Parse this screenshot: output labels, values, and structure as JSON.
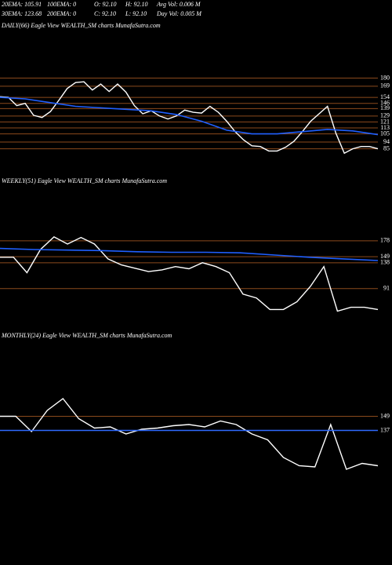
{
  "header": [
    [
      "20EMA: 105.91",
      "100EMA: 0",
      "O: 92.10",
      "H: 92.10",
      "Avg Vol: 0.006 M"
    ],
    [
      "30EMA: 123.68",
      "200EMA: 0",
      "C: 92.10",
      "L: 92.10",
      "Day Vol: 0.005 M"
    ]
  ],
  "chart_data": [
    {
      "type": "line",
      "title": "DAILY(66) Eagle View  WEALTH_SM charts MunafaSutra.com",
      "ylim": [
        74,
        190
      ],
      "yticks": [
        180,
        169,
        154,
        146,
        139,
        129,
        121,
        113,
        105,
        94,
        85
      ],
      "grid": true,
      "grid_color": "#8b4a1c",
      "series": [
        {
          "color": "#ffffff",
          "values": [
            155,
            154,
            143,
            146,
            130,
            127,
            135,
            150,
            166,
            174,
            175,
            164,
            172,
            162,
            172,
            161,
            143,
            132,
            136,
            129,
            125,
            129,
            137,
            134,
            133,
            142,
            134,
            122,
            108,
            97,
            89,
            88,
            82,
            82,
            87,
            95,
            108,
            122,
            132,
            142,
            106,
            79,
            85,
            88,
            88,
            85
          ]
        },
        {
          "color": "#1f5fff",
          "values": [
            154,
            152,
            147,
            142,
            140,
            138,
            136,
            131,
            122,
            110,
            105,
            105,
            108,
            111,
            109,
            104
          ]
        }
      ]
    },
    {
      "type": "line",
      "title": "WEEKLY(51) Eagle View  WEALTH_SM charts MunafaSutra.com",
      "ylim": [
        45,
        202
      ],
      "yticks": [
        178,
        149,
        138,
        91
      ],
      "grid": true,
      "grid_color": "#8b4a1c",
      "series": [
        {
          "color": "#ffffff",
          "values": [
            148,
            148,
            120,
            162,
            185,
            172,
            184,
            172,
            145,
            134,
            128,
            122,
            125,
            131,
            127,
            138,
            131,
            120,
            81,
            74,
            53,
            53,
            67,
            95,
            131,
            50,
            57,
            57,
            53
          ]
        },
        {
          "color": "#1f5fff",
          "values": [
            164,
            162,
            161,
            160,
            158,
            157,
            157,
            156,
            152,
            148,
            145,
            142
          ]
        }
      ]
    },
    {
      "type": "line",
      "title": "MONTHLY(24) Eagle View  WEALTH_SM charts MunafaSutra.com",
      "ylim": [
        102,
        166
      ],
      "yticks": [
        149,
        137
      ],
      "grid": true,
      "grid_color": "#8b4a1c",
      "series": [
        {
          "color": "#ffffff",
          "values": [
            149,
            149,
            136,
            154,
            164,
            147,
            139,
            140,
            134,
            138,
            139,
            141,
            142,
            140,
            145,
            142,
            134,
            129,
            114,
            107,
            106,
            142,
            104,
            109,
            107
          ]
        },
        {
          "color": "#2f6bff",
          "values": [
            137,
            137
          ]
        }
      ]
    }
  ]
}
